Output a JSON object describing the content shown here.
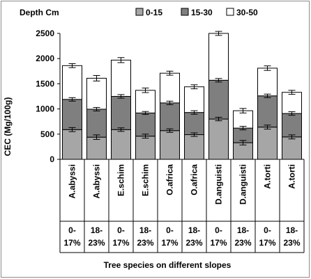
{
  "chart_data": {
    "type": "bar",
    "stacked": true,
    "ylabel": "CEC (Mg/100g)",
    "xlabel": "Tree species on different slopes",
    "legend_title": "Depth Cm",
    "legend_position": "top",
    "ylim": [
      0,
      2500
    ],
    "yticks": [
      0,
      500,
      1000,
      1500,
      2000,
      2500
    ],
    "grid": false,
    "categories": [
      "A.abyssi",
      "A.abyssi",
      "E.schim",
      "E.schim",
      "O.africa",
      "O.africa",
      "D.anguisti",
      "D.anguisti",
      "A.torti",
      "A.torti"
    ],
    "slopes": [
      "0-17%",
      "18-23%",
      "0-17%",
      "18-23%",
      "0-17%",
      "18-23%",
      "0-17%",
      "18-23%",
      "0-17%",
      "18-23%"
    ],
    "series": [
      {
        "name": "0-15",
        "color": "#a6a6a6",
        "values": [
          590,
          440,
          590,
          460,
          570,
          490,
          800,
          330,
          640,
          445
        ]
      },
      {
        "name": "15-30",
        "color": "#7f7f7f",
        "values": [
          600,
          555,
          660,
          460,
          550,
          440,
          770,
          290,
          620,
          465
        ]
      },
      {
        "name": "30-50",
        "color": "#ffffff",
        "values": [
          670,
          615,
          720,
          450,
          590,
          510,
          930,
          345,
          550,
          420
        ]
      }
    ],
    "error_bars": [
      [
        40,
        45,
        35,
        40,
        35,
        35,
        35,
        45,
        40,
        40
      ],
      [
        35,
        35,
        35,
        30,
        35,
        35,
        35,
        35,
        35,
        35
      ],
      [
        40,
        55,
        50,
        45,
        40,
        40,
        40,
        45,
        45,
        40
      ]
    ]
  }
}
